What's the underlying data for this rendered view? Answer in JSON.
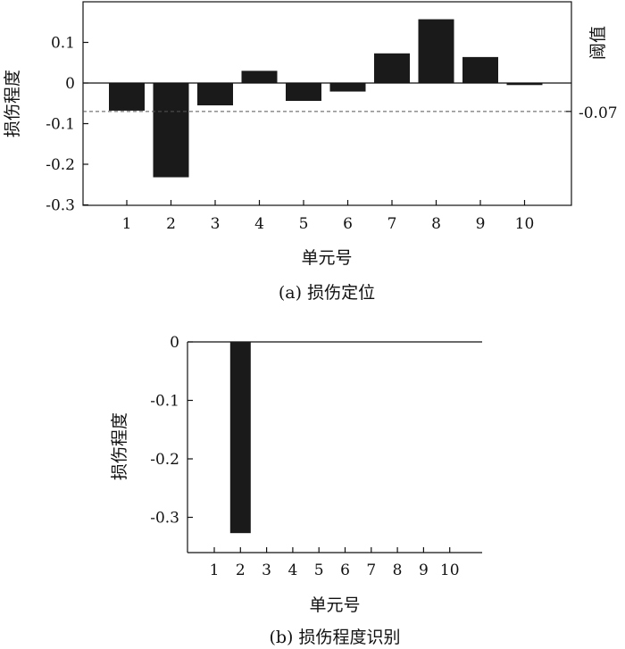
{
  "chart_data": [
    {
      "type": "bar",
      "categories": [
        "1",
        "2",
        "3",
        "4",
        "5",
        "6",
        "7",
        "8",
        "9",
        "10"
      ],
      "values": [
        -0.068,
        -0.232,
        -0.055,
        0.03,
        -0.044,
        -0.021,
        0.073,
        0.157,
        0.064,
        -0.005
      ],
      "ylim": [
        -0.3,
        0.2
      ],
      "yticks": [
        "0.1",
        "0",
        "-0.1",
        "-0.2",
        "-0.3"
      ],
      "ytick_values": [
        0.1,
        0,
        -0.1,
        -0.2,
        -0.3
      ],
      "xlabel": "单元号",
      "ylabel": "损伤程度",
      "y2label": "阈值",
      "threshold": -0.07,
      "threshold_label": "-0.07",
      "caption": "(a) 损伤定位"
    },
    {
      "type": "bar",
      "categories": [
        "1",
        "2",
        "3",
        "4",
        "5",
        "6",
        "7",
        "8",
        "9",
        "10"
      ],
      "values": [
        0,
        -0.327,
        0,
        0,
        0,
        0,
        0,
        0,
        0,
        0
      ],
      "ylim": [
        -0.35,
        0
      ],
      "yticks": [
        "0",
        "-0.1",
        "-0.2",
        "-0.3"
      ],
      "ytick_values": [
        0,
        -0.1,
        -0.2,
        -0.3
      ],
      "xlabel": "单元号",
      "ylabel": "损伤程度",
      "caption": "(b) 损伤程度识别"
    }
  ]
}
